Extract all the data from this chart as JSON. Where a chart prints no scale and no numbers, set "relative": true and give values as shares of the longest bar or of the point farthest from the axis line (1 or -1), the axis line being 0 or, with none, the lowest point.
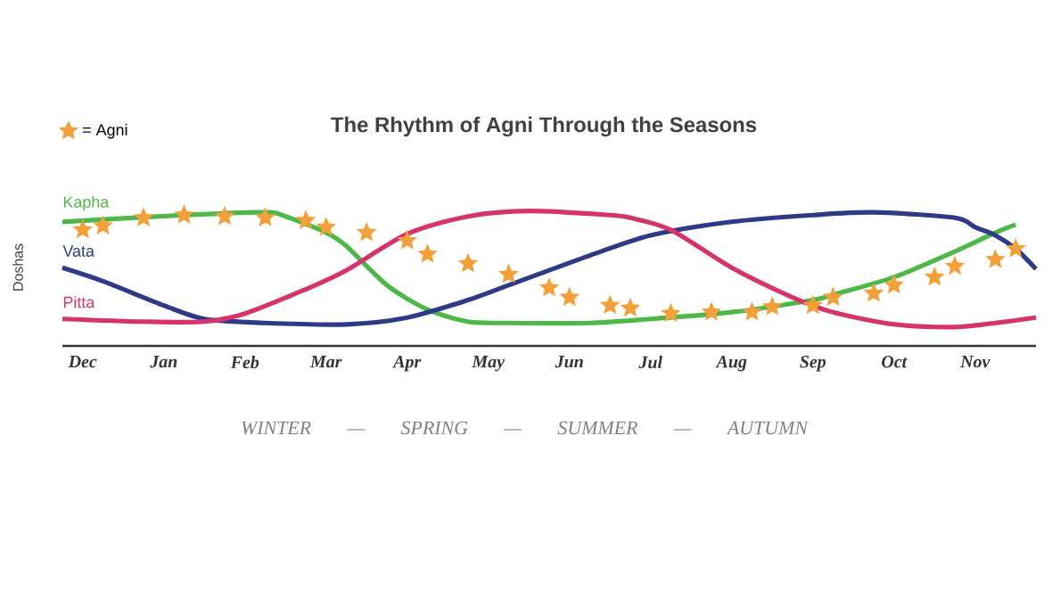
{
  "chart_data": {
    "type": "line",
    "title": "The Rhythm of Agni Through the Seasons",
    "ylabel": "Doshas",
    "xlabel": "WINTER — SPRING — SUMMER — AUTUMN",
    "relative": true,
    "grid": false,
    "legend": "top left",
    "categories": [
      null,
      "Dec",
      null,
      null,
      null,
      "Jan",
      null,
      null,
      null,
      "Feb",
      null,
      null,
      null,
      "Mar",
      null,
      null,
      null,
      "Apr",
      null,
      null,
      null,
      "May",
      null,
      null,
      null,
      "Jun",
      null,
      null,
      null,
      "Jul",
      null,
      null,
      null,
      "Aug",
      null,
      null,
      null,
      "Sep",
      null,
      null,
      null,
      "Oct",
      null,
      null,
      null,
      "Nov",
      null,
      null,
      null
    ],
    "series": [
      {
        "name": "Kapha",
        "color": "#4db848",
        "values": [
          0.92,
          null,
          null,
          null,
          null,
          null,
          0.97,
          null,
          null,
          null,
          0.99,
          0.96,
          null,
          0.84,
          0.74,
          null,
          0.45,
          null,
          0.27,
          null,
          0.18,
          null,
          0.17,
          null,
          null,
          null,
          0.17,
          null,
          null,
          0.2,
          null,
          null,
          null,
          0.25,
          null,
          null,
          null,
          0.34,
          0.38,
          null,
          null,
          0.51,
          null,
          null,
          0.7,
          null,
          0.84,
          0.9,
          null
        ]
      },
      {
        "name": "Vata",
        "color": "#2e3a87",
        "values": [
          0.58,
          null,
          0.48,
          null,
          null,
          0.3,
          null,
          0.2,
          null,
          null,
          0.17,
          null,
          null,
          null,
          0.16,
          null,
          null,
          0.21,
          null,
          null,
          0.34,
          null,
          0.45,
          null,
          null,
          null,
          0.67,
          null,
          null,
          0.82,
          null,
          null,
          null,
          0.92,
          null,
          null,
          null,
          0.97,
          null,
          null,
          0.99,
          null,
          null,
          null,
          0.95,
          0.88,
          0.82,
          0.72,
          0.57
        ]
      },
      {
        "name": "Pitta",
        "color": "#d6336c",
        "values": [
          0.2,
          null,
          null,
          null,
          0.18,
          null,
          null,
          0.18,
          null,
          0.24,
          null,
          null,
          0.42,
          null,
          0.56,
          null,
          null,
          0.83,
          null,
          null,
          0.96,
          null,
          null,
          1,
          null,
          null,
          null,
          0.97,
          0.95,
          null,
          0.86,
          null,
          null,
          0.58,
          null,
          null,
          0.36,
          null,
          0.25,
          null,
          null,
          0.16,
          null,
          null,
          0.14,
          null,
          0.17,
          null,
          0.21
        ]
      },
      {
        "name": "= Agni",
        "type": "scatter",
        "marker": "star",
        "color": "#f4a03a",
        "values": [
          null,
          0.86,
          0.89,
          null,
          0.95,
          null,
          0.97,
          null,
          0.96,
          null,
          0.95,
          null,
          0.93,
          0.88,
          null,
          0.84,
          null,
          0.78,
          0.68,
          null,
          0.61,
          null,
          0.53,
          null,
          0.43,
          0.36,
          null,
          0.3,
          0.28,
          null,
          0.24,
          null,
          0.25,
          null,
          0.25,
          0.29,
          null,
          0.3,
          0.36,
          null,
          0.39,
          0.45,
          null,
          0.51,
          0.59,
          null,
          0.64,
          0.72,
          null
        ]
      }
    ]
  }
}
